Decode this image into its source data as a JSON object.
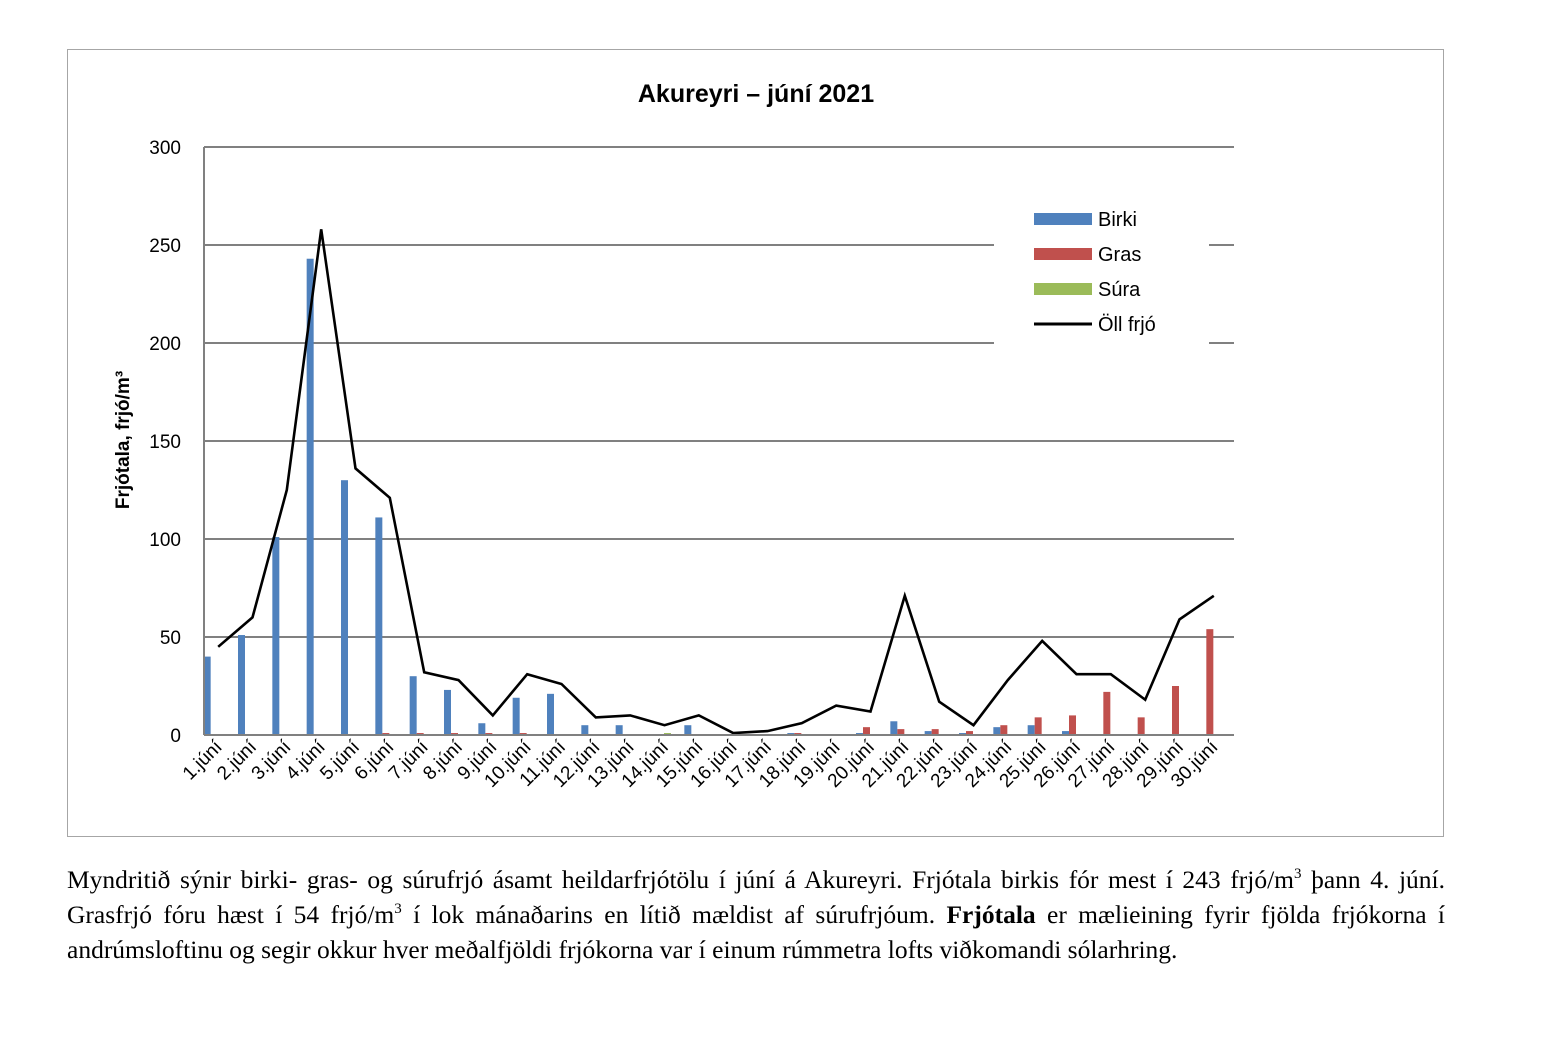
{
  "chart_data": {
    "type": "bar",
    "title": "Akureyri – júní 2021",
    "ylabel": "Frjótala, frjó/m³",
    "xlabel": "",
    "ylim": [
      0,
      300
    ],
    "yticks": [
      0,
      50,
      100,
      150,
      200,
      250,
      300
    ],
    "grid": true,
    "legend_position": "top-right",
    "categories": [
      "1.júní",
      "2.júní",
      "3.júní",
      "4.júní",
      "5.júní",
      "6.júní",
      "7.júní",
      "8.júní",
      "9.júní",
      "10.júní",
      "11.júní",
      "12.júní",
      "13.júní",
      "14.júní",
      "15.júní",
      "16.júní",
      "17.júní",
      "18.júní",
      "19.júní",
      "20.júní",
      "21.júní",
      "22.júní",
      "23.júní",
      "24.júní",
      "25.júní",
      "26.júní",
      "27.júní",
      "28.júní",
      "29.júní",
      "30.júní"
    ],
    "series": [
      {
        "name": "Birki",
        "kind": "bar",
        "color": "#4f81bd",
        "values": [
          40,
          51,
          101,
          243,
          130,
          111,
          30,
          23,
          6,
          19,
          21,
          5,
          5,
          0,
          5,
          0,
          0,
          1,
          0,
          1,
          7,
          2,
          1,
          4,
          5,
          2,
          0,
          0,
          0,
          0
        ]
      },
      {
        "name": "Gras",
        "kind": "bar",
        "color": "#c0504d",
        "values": [
          0,
          0,
          0,
          0,
          0,
          1,
          1,
          1,
          1,
          1,
          0,
          0,
          0,
          0,
          0,
          0,
          0,
          1,
          0,
          4,
          3,
          3,
          2,
          5,
          9,
          10,
          22,
          9,
          25,
          54
        ]
      },
      {
        "name": "Súra",
        "kind": "bar",
        "color": "#9bbb59",
        "values": [
          0,
          0,
          0,
          0,
          0,
          0,
          0,
          0,
          0,
          0,
          0,
          0,
          0,
          1,
          0,
          0,
          0,
          0,
          0,
          0,
          0,
          0,
          0,
          0,
          0,
          0,
          0,
          0,
          0,
          0
        ]
      },
      {
        "name": "Öll frjó",
        "kind": "line",
        "color": "#000000",
        "values": [
          45,
          60,
          125,
          258,
          136,
          121,
          32,
          28,
          10,
          31,
          26,
          9,
          10,
          5,
          10,
          1,
          2,
          6,
          15,
          12,
          71,
          17,
          5,
          28,
          48,
          31,
          31,
          18,
          59,
          71
        ]
      }
    ]
  },
  "caption": {
    "part1": "Myndritið sýnir birki- gras- og súrufrjó ásamt heildarfrjótölu í júní á Akureyri. Frjótala birkis fór mest í 243 frjó/m",
    "sup1": "3",
    "part2": " þann 4. júní. Grasfrjó fóru hæst í 54 frjó/m",
    "sup2": "3",
    "part3": " í lok mánaðarins en lítið mældist af súrufrjóum. ",
    "bold": "Frjótala",
    "part4": " er mælieining fyrir fjölda frjókorna í andrúmsloftinu og segir okkur hver meðalfjöldi frjókorna var í einum rúmmetra lofts viðkomandi sólarhring."
  }
}
